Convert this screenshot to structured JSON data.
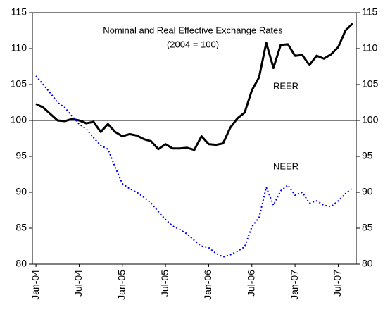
{
  "chart_data": {
    "type": "line",
    "title": "Nominal and Real Effective Exchange Rates",
    "subtitle": "(2004 = 100)",
    "annotations": [
      "REER",
      "NEER"
    ],
    "categories": [
      "Jan-04",
      null,
      null,
      null,
      null,
      null,
      "Jul-04",
      null,
      null,
      null,
      null,
      null,
      "Jan-05",
      null,
      null,
      null,
      null,
      null,
      "Jul-05",
      null,
      null,
      null,
      null,
      null,
      "Jan-06",
      null,
      null,
      null,
      null,
      null,
      "Jul-06",
      null,
      null,
      null,
      null,
      null,
      "Jan-07",
      null,
      null,
      null,
      null,
      null,
      "Jul-07",
      null,
      null
    ],
    "series": [
      {
        "name": "REER",
        "color": "#000000",
        "style": "solid",
        "values": [
          102.3,
          101.8,
          100.9,
          100.0,
          99.9,
          100.2,
          100.0,
          99.6,
          99.8,
          98.4,
          99.5,
          98.4,
          97.8,
          98.1,
          97.9,
          97.4,
          97.1,
          96.0,
          96.7,
          96.1,
          96.1,
          96.2,
          95.9,
          97.8,
          96.7,
          96.6,
          96.8,
          99.0,
          100.3,
          101.1,
          104.2,
          106.0,
          110.8,
          107.3,
          110.5,
          110.6,
          109.0,
          109.1,
          107.7,
          109.0,
          108.6,
          109.2,
          110.2,
          112.5,
          113.5
        ]
      },
      {
        "name": "NEER",
        "color": "#0000ff",
        "style": "dotted",
        "values": [
          106.2,
          105.0,
          103.8,
          102.5,
          101.8,
          100.6,
          99.5,
          98.8,
          97.6,
          96.5,
          96.0,
          93.5,
          91.2,
          90.5,
          90.0,
          89.3,
          88.5,
          87.3,
          86.2,
          85.3,
          84.8,
          84.2,
          83.3,
          82.5,
          82.3,
          81.5,
          81.0,
          81.3,
          81.8,
          82.4,
          85.2,
          86.5,
          90.7,
          88.2,
          90.2,
          91.0,
          89.6,
          90.0,
          88.5,
          88.8,
          88.2,
          88.0,
          88.8,
          89.8,
          90.6
        ]
      }
    ],
    "reference_line": 100,
    "ylim": [
      80,
      115
    ],
    "yticks": [
      80,
      85,
      90,
      95,
      100,
      105,
      110,
      115
    ],
    "y2lim": [
      80,
      115
    ],
    "y2ticks": [
      80,
      85,
      90,
      95,
      100,
      105,
      110,
      115
    ],
    "grid": false
  }
}
